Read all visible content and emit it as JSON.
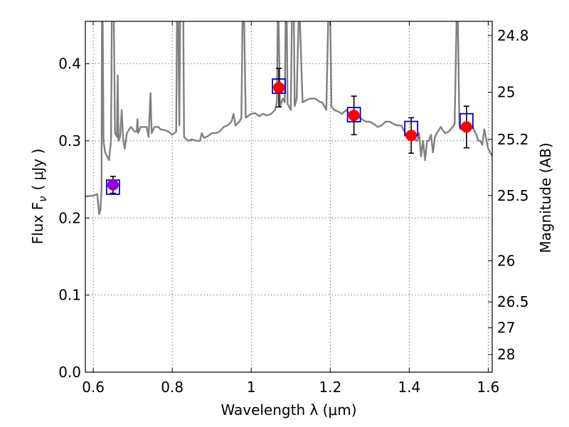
{
  "chart_data": {
    "type": "line",
    "xlabel": "Wavelength  λ (μm)",
    "ylabel": "Flux  F",
    "ylabel_sub": "ν",
    "ylabel_unit": "( μJy )",
    "y2label": "Magnitude (AB)",
    "xlim": [
      0.58,
      1.61
    ],
    "ylim": [
      0.0,
      0.455
    ],
    "grid": true,
    "x_ticks": [
      0.6,
      0.8,
      1.0,
      1.2,
      1.4,
      1.6
    ],
    "x_tick_labels": [
      "0.6",
      "0.8",
      "1",
      "1.2",
      "1.4",
      "1.6"
    ],
    "y_ticks": [
      0.0,
      0.1,
      0.2,
      0.3,
      0.4
    ],
    "y_tick_labels": [
      "0.0",
      "0.1",
      "0.2",
      "0.3",
      "0.4"
    ],
    "y2_ticks": [
      24.8,
      25.0,
      25.2,
      25.5,
      26.0,
      26.5,
      27.0,
      28.0
    ],
    "y2_tick_labels": [
      "24.8",
      "25",
      "25.2",
      "25.5",
      "26",
      "26.5",
      "27",
      "28"
    ],
    "colors": {
      "spectrum": "#808080",
      "observed": "#ff0000",
      "first_point": "#9400d3",
      "model_box": "#0000cd",
      "errorbar": "#000000",
      "grid": "#555555"
    },
    "spectrum": [
      [
        0.58,
        0.228
      ],
      [
        0.6,
        0.229
      ],
      [
        0.61,
        0.231
      ],
      [
        0.615,
        0.205
      ],
      [
        0.618,
        0.21
      ],
      [
        0.621,
        0.238
      ],
      [
        0.622,
        0.46
      ],
      [
        0.624,
        0.46
      ],
      [
        0.626,
        0.3
      ],
      [
        0.63,
        0.285
      ],
      [
        0.64,
        0.275
      ],
      [
        0.645,
        0.3
      ],
      [
        0.647,
        0.46
      ],
      [
        0.65,
        0.46
      ],
      [
        0.652,
        0.46
      ],
      [
        0.655,
        0.31
      ],
      [
        0.66,
        0.305
      ],
      [
        0.662,
        0.385
      ],
      [
        0.664,
        0.3
      ],
      [
        0.668,
        0.305
      ],
      [
        0.672,
        0.34
      ],
      [
        0.676,
        0.3
      ],
      [
        0.68,
        0.29
      ],
      [
        0.685,
        0.31
      ],
      [
        0.695,
        0.318
      ],
      [
        0.705,
        0.312
      ],
      [
        0.71,
        0.312
      ],
      [
        0.712,
        0.328
      ],
      [
        0.714,
        0.31
      ],
      [
        0.72,
        0.318
      ],
      [
        0.73,
        0.318
      ],
      [
        0.735,
        0.318
      ],
      [
        0.74,
        0.305
      ],
      [
        0.745,
        0.362
      ],
      [
        0.748,
        0.31
      ],
      [
        0.755,
        0.318
      ],
      [
        0.765,
        0.318
      ],
      [
        0.77,
        0.315
      ],
      [
        0.78,
        0.314
      ],
      [
        0.79,
        0.312
      ],
      [
        0.8,
        0.308
      ],
      [
        0.81,
        0.312
      ],
      [
        0.812,
        0.46
      ],
      [
        0.815,
        0.46
      ],
      [
        0.818,
        0.32
      ],
      [
        0.82,
        0.46
      ],
      [
        0.822,
        0.46
      ],
      [
        0.828,
        0.46
      ],
      [
        0.83,
        0.305
      ],
      [
        0.84,
        0.3
      ],
      [
        0.85,
        0.302
      ],
      [
        0.86,
        0.3
      ],
      [
        0.87,
        0.3
      ],
      [
        0.875,
        0.31
      ],
      [
        0.88,
        0.304
      ],
      [
        0.89,
        0.306
      ],
      [
        0.9,
        0.31
      ],
      [
        0.91,
        0.31
      ],
      [
        0.92,
        0.312
      ],
      [
        0.93,
        0.318
      ],
      [
        0.94,
        0.32
      ],
      [
        0.95,
        0.325
      ],
      [
        0.955,
        0.335
      ],
      [
        0.96,
        0.32
      ],
      [
        0.97,
        0.325
      ],
      [
        0.975,
        0.33
      ],
      [
        0.978,
        0.46
      ],
      [
        0.982,
        0.46
      ],
      [
        0.986,
        0.33
      ],
      [
        1.0,
        0.335
      ],
      [
        1.01,
        0.336
      ],
      [
        1.02,
        0.332
      ],
      [
        1.03,
        0.335
      ],
      [
        1.04,
        0.333
      ],
      [
        1.05,
        0.335
      ],
      [
        1.06,
        0.34
      ],
      [
        1.065,
        0.35
      ],
      [
        1.067,
        0.46
      ],
      [
        1.069,
        0.46
      ],
      [
        1.073,
        0.345
      ],
      [
        1.08,
        0.355
      ],
      [
        1.085,
        0.35
      ],
      [
        1.087,
        0.46
      ],
      [
        1.09,
        0.46
      ],
      [
        1.092,
        0.348
      ],
      [
        1.095,
        0.345
      ],
      [
        1.1,
        0.34
      ],
      [
        1.103,
        0.46
      ],
      [
        1.108,
        0.46
      ],
      [
        1.11,
        0.345
      ],
      [
        1.115,
        0.355
      ],
      [
        1.12,
        0.46
      ],
      [
        1.123,
        0.46
      ],
      [
        1.13,
        0.35
      ],
      [
        1.14,
        0.353
      ],
      [
        1.15,
        0.355
      ],
      [
        1.16,
        0.355
      ],
      [
        1.17,
        0.352
      ],
      [
        1.175,
        0.35
      ],
      [
        1.18,
        0.35
      ],
      [
        1.185,
        0.345
      ],
      [
        1.19,
        0.34
      ],
      [
        1.195,
        0.46
      ],
      [
        1.2,
        0.46
      ],
      [
        1.203,
        0.345
      ],
      [
        1.21,
        0.34
      ],
      [
        1.22,
        0.338
      ],
      [
        1.23,
        0.335
      ],
      [
        1.24,
        0.34
      ],
      [
        1.25,
        0.335
      ],
      [
        1.26,
        0.33
      ],
      [
        1.27,
        0.333
      ],
      [
        1.28,
        0.328
      ],
      [
        1.29,
        0.325
      ],
      [
        1.3,
        0.325
      ],
      [
        1.31,
        0.322
      ],
      [
        1.32,
        0.318
      ],
      [
        1.33,
        0.32
      ],
      [
        1.34,
        0.325
      ],
      [
        1.35,
        0.325
      ],
      [
        1.36,
        0.322
      ],
      [
        1.37,
        0.32
      ],
      [
        1.38,
        0.32
      ],
      [
        1.39,
        0.31
      ],
      [
        1.4,
        0.305
      ],
      [
        1.41,
        0.303
      ],
      [
        1.42,
        0.3
      ],
      [
        1.425,
        0.31
      ],
      [
        1.43,
        0.28
      ],
      [
        1.435,
        0.3
      ],
      [
        1.44,
        0.275
      ],
      [
        1.445,
        0.3
      ],
      [
        1.45,
        0.3
      ],
      [
        1.455,
        0.308
      ],
      [
        1.46,
        0.285
      ],
      [
        1.465,
        0.305
      ],
      [
        1.47,
        0.31
      ],
      [
        1.48,
        0.318
      ],
      [
        1.49,
        0.31
      ],
      [
        1.5,
        0.312
      ],
      [
        1.51,
        0.318
      ],
      [
        1.515,
        0.322
      ],
      [
        1.52,
        0.46
      ],
      [
        1.523,
        0.46
      ],
      [
        1.527,
        0.32
      ],
      [
        1.53,
        0.315
      ],
      [
        1.54,
        0.318
      ],
      [
        1.55,
        0.322
      ],
      [
        1.56,
        0.318
      ],
      [
        1.57,
        0.308
      ],
      [
        1.575,
        0.3
      ],
      [
        1.58,
        0.3
      ],
      [
        1.585,
        0.295
      ],
      [
        1.59,
        0.315
      ],
      [
        1.6,
        0.29
      ],
      [
        1.61,
        0.28
      ]
    ],
    "observed": [
      {
        "x": 0.65,
        "y": 0.243,
        "err": 0.011,
        "model": 0.24
      },
      {
        "x": 1.07,
        "y": 0.369,
        "err": 0.025,
        "model": 0.371
      },
      {
        "x": 1.26,
        "y": 0.333,
        "err": 0.025,
        "model": 0.334
      },
      {
        "x": 1.405,
        "y": 0.307,
        "err": 0.023,
        "model": 0.316
      },
      {
        "x": 1.545,
        "y": 0.318,
        "err": 0.027,
        "model": 0.326
      }
    ]
  }
}
